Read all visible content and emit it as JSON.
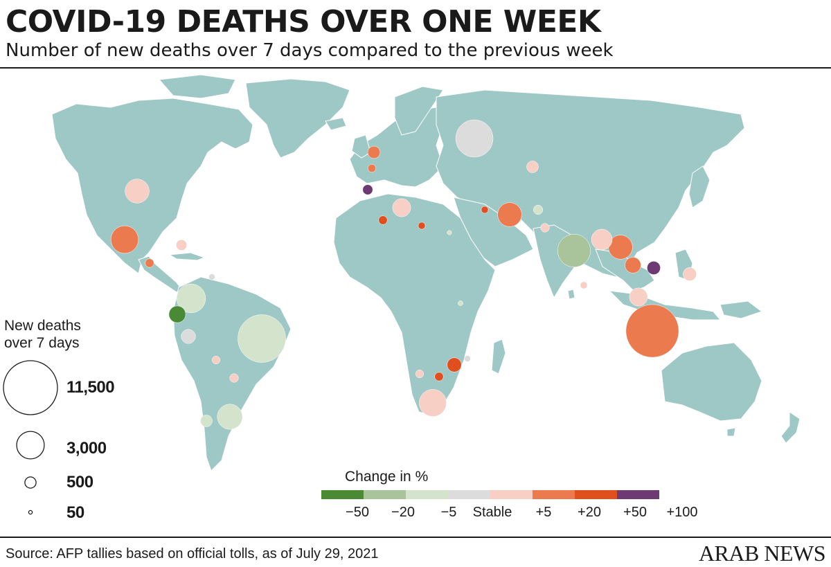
{
  "header": {
    "title": "COVID-19 DEATHS OVER ONE WEEK",
    "subtitle": "Number of new deaths over 7 days compared to the previous week"
  },
  "footer": {
    "source": "Source: AFP tallies based on official tolls, as of July 29, 2021",
    "logo": "ARAB NEWS"
  },
  "size_legend": {
    "title_line1": "New deaths",
    "title_line2": "over 7 days",
    "entries": [
      {
        "value": 11500,
        "label": "11,500"
      },
      {
        "value": 3000,
        "label": "3,000"
      },
      {
        "value": 500,
        "label": "500"
      },
      {
        "value": 50,
        "label": "50"
      }
    ]
  },
  "change_legend": {
    "title": "Change in %",
    "colors": [
      "#4a8a35",
      "#a9c49a",
      "#d4e4cc",
      "#dcdcdc",
      "#f7cfc4",
      "#ec7a4f",
      "#e0501f",
      "#6e3a74"
    ],
    "ticks": [
      "−50",
      "−20",
      "−5",
      "Stable",
      "+5",
      "+20",
      "+50",
      "+100"
    ]
  },
  "colors": {
    "land": "#9ec8c6",
    "ocean": "#ffffff",
    "border": "#ffffff"
  },
  "bubbles": [
    {
      "region": "United States",
      "deaths": 2300,
      "color": "#f7cfc4"
    },
    {
      "region": "Mexico",
      "deaths": 3000,
      "color": "#ec7a4f"
    },
    {
      "region": "Colombia",
      "deaths": 3300,
      "color": "#d4e4cc"
    },
    {
      "region": "Ecuador",
      "deaths": 1100,
      "color": "#4a8a35"
    },
    {
      "region": "Peru",
      "deaths": 800,
      "color": "#dcdcdc"
    },
    {
      "region": "Brazil",
      "deaths": 9000,
      "color": "#d4e4cc"
    },
    {
      "region": "Argentina",
      "deaths": 2500,
      "color": "#d4e4cc"
    },
    {
      "region": "Chile",
      "deaths": 550,
      "color": "#d4e4cc"
    },
    {
      "region": "Paraguay",
      "deaths": 300,
      "color": "#f7cfc4"
    },
    {
      "region": "Bolivia",
      "deaths": 250,
      "color": "#f7cfc4"
    },
    {
      "region": "Cuba",
      "deaths": 450,
      "color": "#f7cfc4"
    },
    {
      "region": "Guatemala",
      "deaths": 300,
      "color": "#ec7a4f"
    },
    {
      "region": "Venezuela",
      "deaths": 150,
      "color": "#dcdcdc"
    },
    {
      "region": "Russia",
      "deaths": 5500,
      "color": "#dcdcdc"
    },
    {
      "region": "United Kingdom",
      "deaths": 600,
      "color": "#ec7a4f"
    },
    {
      "region": "France",
      "deaths": 250,
      "color": "#ec7a4f"
    },
    {
      "region": "Spain",
      "deaths": 400,
      "color": "#6e3a74"
    },
    {
      "region": "Morocco",
      "deaths": 300,
      "color": "#e0501f"
    },
    {
      "region": "Tunisia",
      "deaths": 1300,
      "color": "#f7cfc4"
    },
    {
      "region": "Libya",
      "deaths": 200,
      "color": "#e0501f"
    },
    {
      "region": "Kazakhstan",
      "deaths": 550,
      "color": "#f7cfc4"
    },
    {
      "region": "Iran",
      "deaths": 2300,
      "color": "#ec7a4f"
    },
    {
      "region": "Afghanistan",
      "deaths": 350,
      "color": "#d4e4cc"
    },
    {
      "region": "Pakistan",
      "deaths": 300,
      "color": "#f7cfc4"
    },
    {
      "region": "India",
      "deaths": 4300,
      "color": "#a9c49a"
    },
    {
      "region": "Bangladesh",
      "deaths": 1700,
      "color": "#f7cfc4"
    },
    {
      "region": "Myanmar",
      "deaths": 2300,
      "color": "#ec7a4f"
    },
    {
      "region": "Thailand",
      "deaths": 1000,
      "color": "#ec7a4f"
    },
    {
      "region": "Vietnam",
      "deaths": 700,
      "color": "#6e3a74"
    },
    {
      "region": "Malaysia",
      "deaths": 1300,
      "color": "#f7cfc4"
    },
    {
      "region": "Indonesia",
      "deaths": 11000,
      "color": "#ec7a4f"
    },
    {
      "region": "Philippines",
      "deaths": 700,
      "color": "#f7cfc4"
    },
    {
      "region": "Sri Lanka",
      "deaths": 200,
      "color": "#f7cfc4"
    },
    {
      "region": "Zambia",
      "deaths": 800,
      "color": "#e0501f"
    },
    {
      "region": "Zimbabwe",
      "deaths": 300,
      "color": "#e0501f"
    },
    {
      "region": "Namibia",
      "deaths": 250,
      "color": "#f7cfc4"
    },
    {
      "region": "South Africa",
      "deaths": 2900,
      "color": "#f7cfc4"
    },
    {
      "region": "Mozambique",
      "deaths": 150,
      "color": "#dcdcdc"
    },
    {
      "region": "Kenya",
      "deaths": 100,
      "color": "#d4e4cc"
    },
    {
      "region": "Iraq",
      "deaths": 200,
      "color": "#e0501f"
    },
    {
      "region": "Egypt",
      "deaths": 80,
      "color": "#d4e4cc"
    }
  ]
}
